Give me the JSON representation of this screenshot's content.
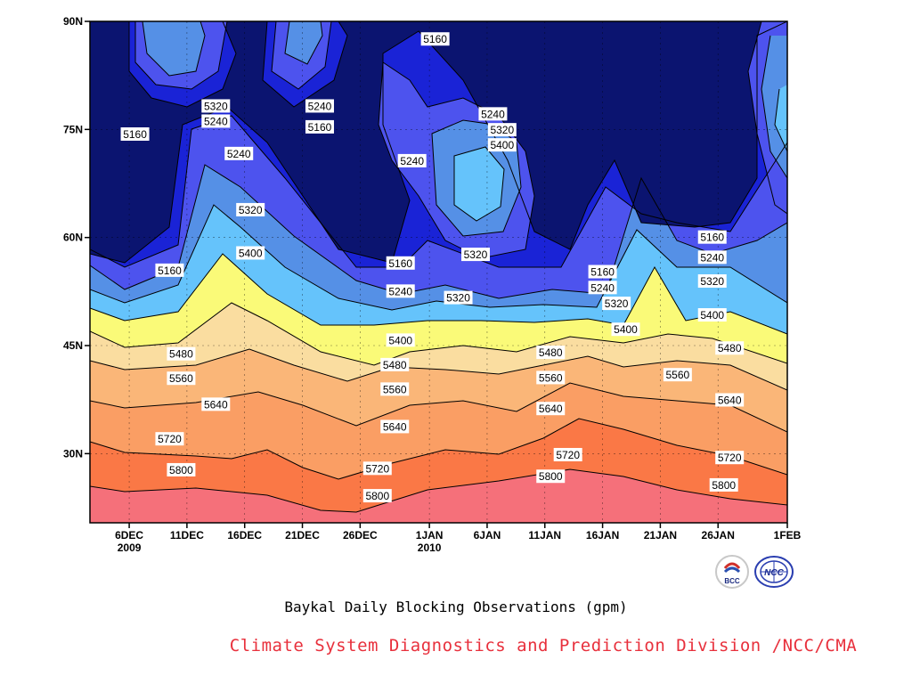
{
  "chart_data": {
    "type": "contour",
    "title": "Baykal Daily Blocking Observations (gpm)",
    "source": "Climate System Diagnostics and Prediction Division /NCC/CMA",
    "ylabel": "",
    "xlabel": "",
    "y_ticks": [
      "90N",
      "75N",
      "60N",
      "45N",
      "30N"
    ],
    "x_ticks": [
      {
        "label": "6DEC",
        "sub": "2009"
      },
      {
        "label": "11DEC",
        "sub": ""
      },
      {
        "label": "16DEC",
        "sub": ""
      },
      {
        "label": "21DEC",
        "sub": ""
      },
      {
        "label": "26DEC",
        "sub": ""
      },
      {
        "label": "1JAN",
        "sub": "2010"
      },
      {
        "label": "6JAN",
        "sub": ""
      },
      {
        "label": "11JAN",
        "sub": ""
      },
      {
        "label": "16JAN",
        "sub": ""
      },
      {
        "label": "21JAN",
        "sub": ""
      },
      {
        "label": "26JAN",
        "sub": ""
      },
      {
        "label": "1FEB",
        "sub": ""
      }
    ],
    "contour_levels": [
      5160,
      5240,
      5320,
      5400,
      5480,
      5560,
      5640,
      5720,
      5800
    ],
    "fill_colors": [
      "#0b1470",
      "#1a23d6",
      "#4d53ee",
      "#5590e6",
      "#65c3fb",
      "#fafa78",
      "#fadda0",
      "#fab678",
      "#fa9e64",
      "#fa7846",
      "#f5707a"
    ],
    "contour_labels": [
      {
        "v": "5160",
        "day": 0.5,
        "lat": 74.3
      },
      {
        "v": "5320",
        "day": 7.5,
        "lat": 78.2
      },
      {
        "v": "5240",
        "day": 7.5,
        "lat": 76.1
      },
      {
        "v": "5240",
        "day": 16.5,
        "lat": 78.2
      },
      {
        "v": "5160",
        "day": 16.5,
        "lat": 75.3
      },
      {
        "v": "5160",
        "day": 26.5,
        "lat": 87.5
      },
      {
        "v": "5240",
        "day": 31.5,
        "lat": 77.1
      },
      {
        "v": "5320",
        "day": 32.3,
        "lat": 74.9
      },
      {
        "v": "5400",
        "day": 32.3,
        "lat": 72.8
      },
      {
        "v": "5240",
        "day": 9.5,
        "lat": 71.6
      },
      {
        "v": "5240",
        "day": 24.5,
        "lat": 70.6
      },
      {
        "v": "5320",
        "day": 10.5,
        "lat": 63.8
      },
      {
        "v": "5400",
        "day": 10.5,
        "lat": 57.8
      },
      {
        "v": "5160",
        "day": 3.5,
        "lat": 55.4
      },
      {
        "v": "5320",
        "day": 30.0,
        "lat": 57.6
      },
      {
        "v": "5160",
        "day": 23.5,
        "lat": 56.4
      },
      {
        "v": "5240",
        "day": 23.5,
        "lat": 52.5
      },
      {
        "v": "5320",
        "day": 28.5,
        "lat": 51.6
      },
      {
        "v": "5400",
        "day": 23.5,
        "lat": 45.7
      },
      {
        "v": "5160",
        "day": 41.0,
        "lat": 55.2
      },
      {
        "v": "5240",
        "day": 41.0,
        "lat": 53.0
      },
      {
        "v": "5320",
        "day": 42.2,
        "lat": 50.8
      },
      {
        "v": "5400",
        "day": 43.0,
        "lat": 47.2
      },
      {
        "v": "5160",
        "day": 50.5,
        "lat": 60.0
      },
      {
        "v": "5240",
        "day": 50.5,
        "lat": 57.2
      },
      {
        "v": "5320",
        "day": 50.5,
        "lat": 53.9
      },
      {
        "v": "5400",
        "day": 50.5,
        "lat": 49.2
      },
      {
        "v": "5480",
        "day": 4.5,
        "lat": 43.8
      },
      {
        "v": "5560",
        "day": 4.5,
        "lat": 40.4
      },
      {
        "v": "5640",
        "day": 7.5,
        "lat": 36.8
      },
      {
        "v": "5720",
        "day": 3.5,
        "lat": 32.0
      },
      {
        "v": "5800",
        "day": 4.5,
        "lat": 27.7
      },
      {
        "v": "5480",
        "day": 23.0,
        "lat": 42.3
      },
      {
        "v": "5560",
        "day": 23.0,
        "lat": 38.9
      },
      {
        "v": "5640",
        "day": 23.0,
        "lat": 33.7
      },
      {
        "v": "5720",
        "day": 21.5,
        "lat": 27.9
      },
      {
        "v": "5800",
        "day": 21.5,
        "lat": 24.1
      },
      {
        "v": "5480",
        "day": 36.5,
        "lat": 44.0
      },
      {
        "v": "5560",
        "day": 36.5,
        "lat": 40.5
      },
      {
        "v": "5640",
        "day": 36.5,
        "lat": 36.2
      },
      {
        "v": "5720",
        "day": 38.0,
        "lat": 29.8
      },
      {
        "v": "5800",
        "day": 36.5,
        "lat": 26.8
      },
      {
        "v": "5480",
        "day": 52.0,
        "lat": 44.6
      },
      {
        "v": "5560",
        "day": 47.5,
        "lat": 40.9
      },
      {
        "v": "5640",
        "day": 52.0,
        "lat": 37.4
      },
      {
        "v": "5720",
        "day": 52.0,
        "lat": 29.4
      },
      {
        "v": "5800",
        "day": 51.5,
        "lat": 25.6
      }
    ]
  },
  "labels": {
    "title": "Baykal Daily Blocking Observations (gpm)",
    "org": "Climate System Diagnostics and Prediction Division /NCC/CMA",
    "logo_left_text": "BCC"
  },
  "colors": {
    "footer_org": "#e8303c"
  }
}
